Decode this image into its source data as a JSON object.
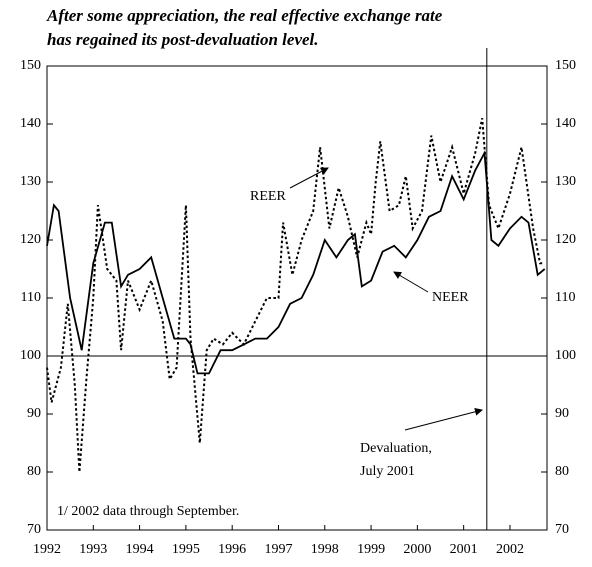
{
  "chart_data": {
    "type": "line",
    "title": [
      "After some appreciation, the real effective exchange rate",
      "has regained its post-devaluation level."
    ],
    "note": "1/ 2002 data through September.",
    "annotations": [
      "REER",
      "NEER",
      "Devaluation,",
      "July 2001"
    ],
    "reference_y": 100,
    "reference_x": 2001.5,
    "xlim": [
      1992,
      2002.8
    ],
    "xticks": [
      1992,
      1993,
      1994,
      1995,
      1996,
      1997,
      1998,
      1999,
      2000,
      2001,
      2002
    ],
    "ylim": [
      70,
      150
    ],
    "yticks": [
      70,
      80,
      90,
      100,
      110,
      120,
      130,
      140,
      150
    ],
    "y2lim": [
      70,
      150
    ],
    "y2ticks": [
      70,
      80,
      90,
      100,
      110,
      120,
      130,
      140,
      150
    ],
    "series": [
      {
        "name": "NEER",
        "color": "#000000",
        "style": "solid",
        "x": [
          1992.0,
          1992.15,
          1992.25,
          1992.5,
          1992.75,
          1993.0,
          1993.25,
          1993.4,
          1993.6,
          1993.75,
          1994.0,
          1994.25,
          1994.5,
          1994.75,
          1995.0,
          1995.1,
          1995.25,
          1995.5,
          1995.75,
          1996.0,
          1996.25,
          1996.5,
          1996.75,
          1997.0,
          1997.25,
          1997.5,
          1997.75,
          1998.0,
          1998.25,
          1998.5,
          1998.65,
          1998.8,
          1999.0,
          1999.25,
          1999.5,
          1999.75,
          2000.0,
          2000.25,
          2000.5,
          2000.75,
          2001.0,
          2001.25,
          2001.45,
          2001.6,
          2001.75,
          2002.0,
          2002.25,
          2002.4,
          2002.6,
          2002.75
        ],
        "values": [
          119,
          126,
          125,
          110,
          101,
          116,
          123,
          123,
          112,
          114,
          115,
          117,
          110,
          103,
          103,
          102,
          97,
          97,
          101,
          101,
          102,
          103,
          103,
          105,
          109,
          110,
          114,
          120,
          117,
          120,
          121,
          112,
          113,
          118,
          119,
          117,
          120,
          124,
          125,
          131,
          127,
          132,
          135,
          120,
          119,
          122,
          124,
          123,
          114,
          115
        ]
      },
      {
        "name": "REER",
        "color": "#000000",
        "style": "dotted",
        "x": [
          1992.0,
          1992.1,
          1992.3,
          1992.45,
          1992.6,
          1992.7,
          1992.85,
          1993.0,
          1993.1,
          1993.3,
          1993.5,
          1993.6,
          1993.75,
          1994.0,
          1994.25,
          1994.5,
          1994.65,
          1994.8,
          1995.0,
          1995.1,
          1995.3,
          1995.45,
          1995.6,
          1995.8,
          1996.0,
          1996.25,
          1996.5,
          1996.75,
          1997.0,
          1997.1,
          1997.3,
          1997.5,
          1997.75,
          1997.9,
          1998.1,
          1998.3,
          1998.5,
          1998.7,
          1998.9,
          1999.0,
          1999.1,
          1999.2,
          1999.4,
          1999.6,
          1999.75,
          1999.9,
          2000.1,
          2000.3,
          2000.5,
          2000.75,
          2001.0,
          2001.25,
          2001.4,
          2001.55,
          2001.75,
          2002.0,
          2002.25,
          2002.5,
          2002.65,
          2002.75
        ],
        "values": [
          98,
          92,
          98,
          109,
          95,
          80,
          96,
          110,
          126,
          115,
          113,
          101,
          113,
          108,
          113,
          106,
          96,
          98,
          126,
          103,
          85,
          101,
          103,
          102,
          104,
          102,
          106,
          110,
          110,
          123,
          114,
          120,
          125,
          136,
          122,
          129,
          124,
          117,
          123,
          121,
          130,
          137,
          125,
          126,
          131,
          122,
          125,
          138,
          130,
          136,
          128,
          135,
          141,
          126,
          122,
          128,
          136,
          122,
          116,
          116
        ]
      }
    ]
  }
}
